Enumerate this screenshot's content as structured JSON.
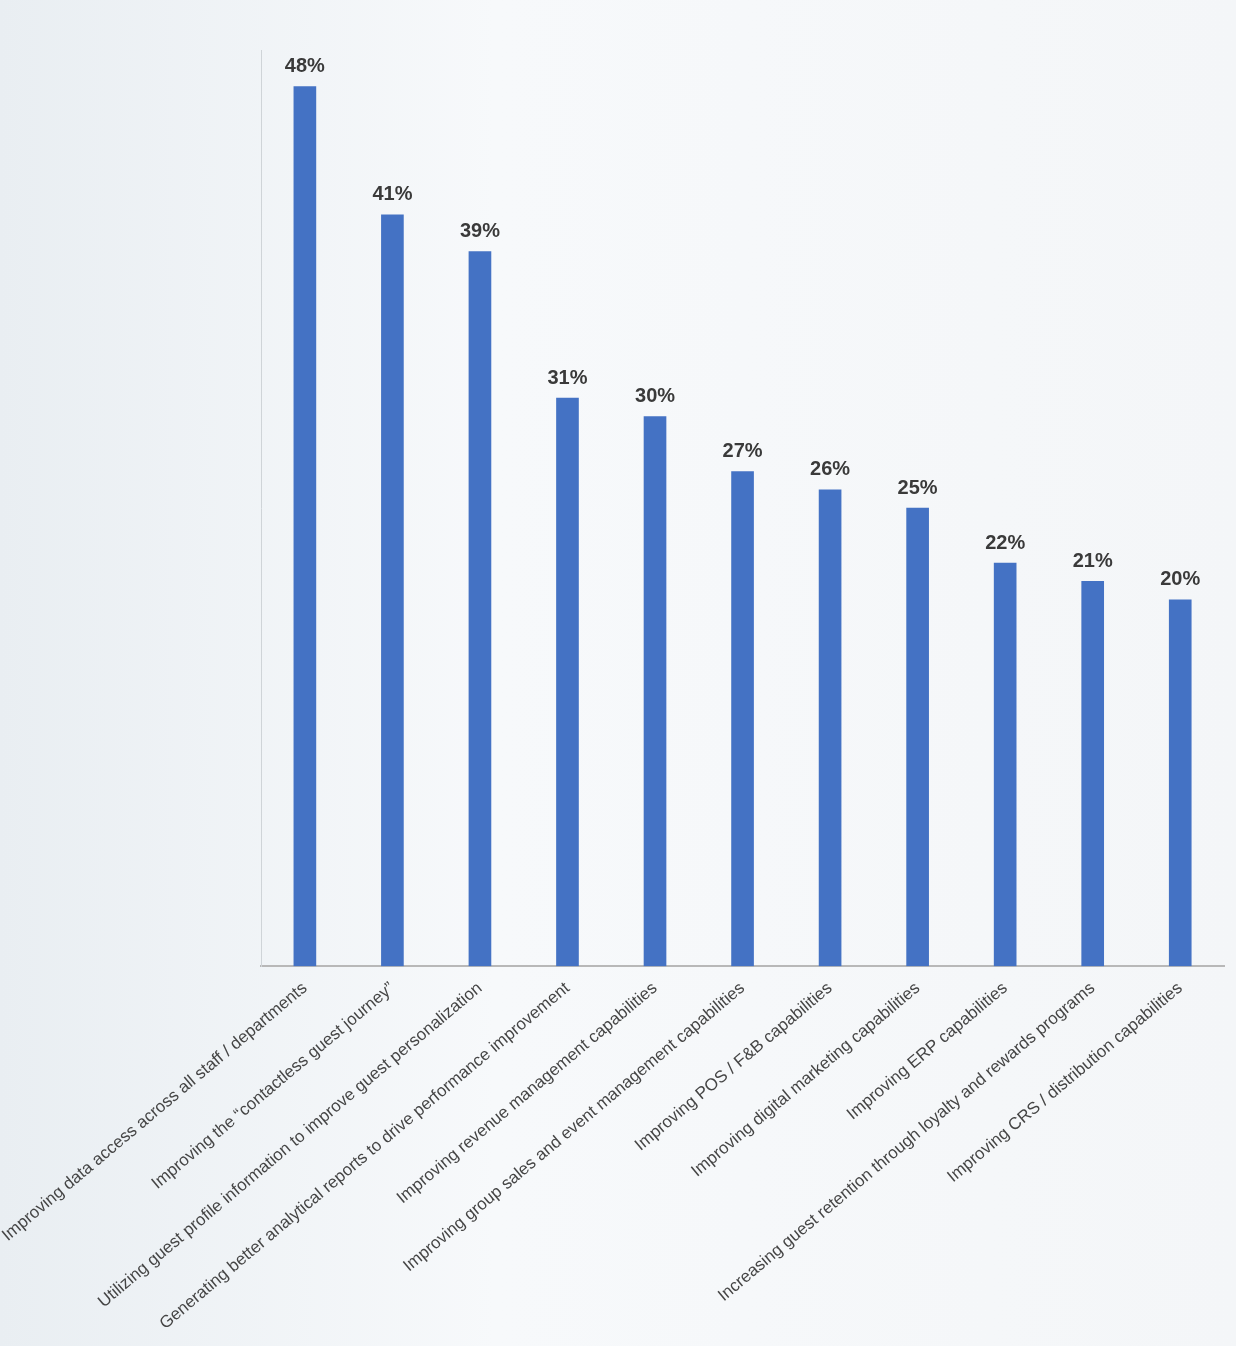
{
  "chart_data": {
    "type": "bar",
    "categories": [
      "Improving data access across all staff / departments",
      "Improving the “contactless guest journey”",
      "Utilizing guest profile information to improve guest personalization",
      "Generating better analytical reports to drive performance improvement",
      "Improving revenue management capabilities",
      "Improving group sales and event management capabilities",
      "Improving POS / F&B capabilities",
      "Improving digital marketing capabilities",
      "Improving ERP capabilities",
      "Increasing guest retention through loyalty and rewards programs",
      "Improving CRS / distribution capabilities"
    ],
    "values": [
      48,
      41,
      39,
      31,
      30,
      27,
      26,
      25,
      22,
      21,
      20
    ],
    "value_labels": [
      "48%",
      "41%",
      "39%",
      "31%",
      "30%",
      "27%",
      "26%",
      "25%",
      "22%",
      "21%",
      "20%"
    ],
    "color": "#4472c4",
    "ylim": [
      0,
      50
    ],
    "grid": false,
    "data_labels": true,
    "tick_labels": "x"
  }
}
